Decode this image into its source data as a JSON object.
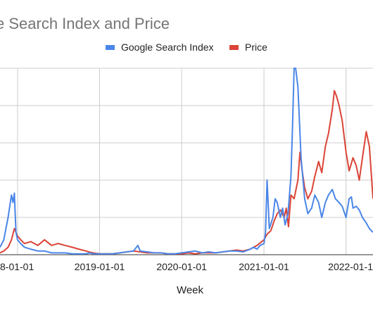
{
  "chart_data": {
    "type": "line",
    "title": "e Search Index and Price",
    "xlabel": "Week",
    "ylabel": "",
    "x_range": [
      "2017-10-15",
      "2022-05-01"
    ],
    "grid": true,
    "legend_position": "top",
    "x_ticks": [
      "2018-01-01",
      "2019-01-01",
      "2020-01-01",
      "2021-01-01",
      "2022-01-01"
    ],
    "x_tick_labels": [
      "8-01-01",
      "2019-01-01",
      "2020-01-01",
      "2021-01-01",
      "2022-01-1"
    ],
    "y_range": [
      0,
      100
    ],
    "series": [
      {
        "name": "Google Search Index",
        "color": "#4a86e8",
        "points": [
          [
            "2017-10-15",
            4
          ],
          [
            "2017-11-01",
            8
          ],
          [
            "2017-11-20",
            20
          ],
          [
            "2017-12-05",
            32
          ],
          [
            "2017-12-12",
            28
          ],
          [
            "2017-12-18",
            33
          ],
          [
            "2017-12-25",
            12
          ],
          [
            "2018-01-01",
            8
          ],
          [
            "2018-01-15",
            6
          ],
          [
            "2018-02-01",
            4
          ],
          [
            "2018-03-01",
            3
          ],
          [
            "2018-04-01",
            2
          ],
          [
            "2018-05-01",
            2
          ],
          [
            "2018-06-01",
            1
          ],
          [
            "2018-07-01",
            1
          ],
          [
            "2018-08-01",
            1
          ],
          [
            "2018-09-01",
            0.5
          ],
          [
            "2018-10-01",
            0.5
          ],
          [
            "2018-11-01",
            0.5
          ],
          [
            "2018-11-20",
            1
          ],
          [
            "2018-12-01",
            0.5
          ],
          [
            "2019-01-01",
            0.5
          ],
          [
            "2019-02-01",
            0.5
          ],
          [
            "2019-03-01",
            0.5
          ],
          [
            "2019-04-01",
            1
          ],
          [
            "2019-05-01",
            1.5
          ],
          [
            "2019-06-01",
            2
          ],
          [
            "2019-06-20",
            5
          ],
          [
            "2019-07-01",
            2
          ],
          [
            "2019-08-01",
            1.5
          ],
          [
            "2019-09-01",
            1
          ],
          [
            "2019-10-01",
            1
          ],
          [
            "2019-11-01",
            0.5
          ],
          [
            "2019-12-01",
            0.5
          ],
          [
            "2020-01-01",
            1
          ],
          [
            "2020-02-01",
            1.5
          ],
          [
            "2020-03-01",
            2
          ],
          [
            "2020-04-01",
            1
          ],
          [
            "2020-05-01",
            1.5
          ],
          [
            "2020-06-01",
            1
          ],
          [
            "2020-07-01",
            1.5
          ],
          [
            "2020-08-01",
            2
          ],
          [
            "2020-09-01",
            2
          ],
          [
            "2020-10-01",
            1.5
          ],
          [
            "2020-11-01",
            3
          ],
          [
            "2020-11-15",
            4
          ],
          [
            "2020-12-01",
            3
          ],
          [
            "2020-12-15",
            5
          ],
          [
            "2021-01-01",
            6
          ],
          [
            "2021-01-08",
            12
          ],
          [
            "2021-01-15",
            40
          ],
          [
            "2021-01-25",
            14
          ],
          [
            "2021-02-10",
            20
          ],
          [
            "2021-02-20",
            30
          ],
          [
            "2021-03-01",
            28
          ],
          [
            "2021-03-15",
            20
          ],
          [
            "2021-03-25",
            25
          ],
          [
            "2021-04-05",
            16
          ],
          [
            "2021-04-18",
            22
          ],
          [
            "2021-05-01",
            42
          ],
          [
            "2021-05-08",
            68
          ],
          [
            "2021-05-15",
            100
          ],
          [
            "2021-05-22",
            100
          ],
          [
            "2021-06-01",
            90
          ],
          [
            "2021-06-15",
            52
          ],
          [
            "2021-07-01",
            30
          ],
          [
            "2021-07-15",
            22
          ],
          [
            "2021-08-01",
            25
          ],
          [
            "2021-08-15",
            32
          ],
          [
            "2021-09-01",
            28
          ],
          [
            "2021-09-15",
            20
          ],
          [
            "2021-10-01",
            28
          ],
          [
            "2021-10-15",
            32
          ],
          [
            "2021-11-01",
            35
          ],
          [
            "2021-11-15",
            30
          ],
          [
            "2021-12-01",
            28
          ],
          [
            "2021-12-15",
            26
          ],
          [
            "2022-01-01",
            20
          ],
          [
            "2022-01-15",
            30
          ],
          [
            "2022-01-25",
            31
          ],
          [
            "2022-02-01",
            25
          ],
          [
            "2022-02-15",
            26
          ],
          [
            "2022-03-01",
            24
          ],
          [
            "2022-03-15",
            20
          ],
          [
            "2022-04-01",
            17
          ],
          [
            "2022-04-15",
            14
          ],
          [
            "2022-05-01",
            12
          ]
        ]
      },
      {
        "name": "Price",
        "color": "#db4437",
        "points": [
          [
            "2017-10-15",
            1
          ],
          [
            "2017-11-01",
            2
          ],
          [
            "2017-11-20",
            4
          ],
          [
            "2017-12-05",
            8
          ],
          [
            "2017-12-18",
            14
          ],
          [
            "2018-01-01",
            10
          ],
          [
            "2018-01-15",
            8
          ],
          [
            "2018-02-01",
            6
          ],
          [
            "2018-03-01",
            7
          ],
          [
            "2018-04-01",
            5
          ],
          [
            "2018-05-01",
            8
          ],
          [
            "2018-06-01",
            5
          ],
          [
            "2018-07-01",
            6
          ],
          [
            "2018-08-01",
            5
          ],
          [
            "2018-09-01",
            4
          ],
          [
            "2018-10-01",
            3
          ],
          [
            "2018-11-01",
            2
          ],
          [
            "2018-12-01",
            1
          ],
          [
            "2019-01-01",
            0.5
          ],
          [
            "2019-02-01",
            0.5
          ],
          [
            "2019-03-01",
            0.5
          ],
          [
            "2019-04-01",
            1
          ],
          [
            "2019-05-01",
            1.5
          ],
          [
            "2019-06-01",
            2
          ],
          [
            "2019-07-01",
            1.5
          ],
          [
            "2019-08-01",
            1
          ],
          [
            "2019-09-01",
            1
          ],
          [
            "2019-10-01",
            1
          ],
          [
            "2019-11-01",
            0.5
          ],
          [
            "2019-12-01",
            0.5
          ],
          [
            "2020-01-01",
            0.5
          ],
          [
            "2020-02-01",
            1
          ],
          [
            "2020-03-01",
            0.5
          ],
          [
            "2020-04-01",
            1
          ],
          [
            "2020-05-01",
            1
          ],
          [
            "2020-06-01",
            1
          ],
          [
            "2020-07-01",
            1.5
          ],
          [
            "2020-08-01",
            2
          ],
          [
            "2020-09-01",
            2.5
          ],
          [
            "2020-10-01",
            2
          ],
          [
            "2020-11-01",
            3
          ],
          [
            "2020-12-01",
            5
          ],
          [
            "2021-01-01",
            8
          ],
          [
            "2021-01-15",
            11
          ],
          [
            "2021-02-01",
            13
          ],
          [
            "2021-02-15",
            18
          ],
          [
            "2021-03-01",
            22
          ],
          [
            "2021-03-15",
            24
          ],
          [
            "2021-04-01",
            20
          ],
          [
            "2021-04-10",
            25
          ],
          [
            "2021-04-20",
            15
          ],
          [
            "2021-05-01",
            32
          ],
          [
            "2021-05-15",
            30
          ],
          [
            "2021-06-01",
            40
          ],
          [
            "2021-06-10",
            55
          ],
          [
            "2021-06-20",
            45
          ],
          [
            "2021-07-01",
            36
          ],
          [
            "2021-07-15",
            30
          ],
          [
            "2021-08-01",
            34
          ],
          [
            "2021-08-15",
            42
          ],
          [
            "2021-09-01",
            50
          ],
          [
            "2021-09-15",
            44
          ],
          [
            "2021-10-01",
            58
          ],
          [
            "2021-10-15",
            65
          ],
          [
            "2021-11-01",
            78
          ],
          [
            "2021-11-10",
            88
          ],
          [
            "2021-11-20",
            85
          ],
          [
            "2021-12-01",
            80
          ],
          [
            "2021-12-15",
            72
          ],
          [
            "2022-01-01",
            55
          ],
          [
            "2022-01-15",
            45
          ],
          [
            "2022-02-01",
            52
          ],
          [
            "2022-02-15",
            48
          ],
          [
            "2022-03-01",
            40
          ],
          [
            "2022-03-15",
            52
          ],
          [
            "2022-04-01",
            66
          ],
          [
            "2022-04-15",
            58
          ],
          [
            "2022-05-01",
            30
          ]
        ]
      }
    ]
  }
}
